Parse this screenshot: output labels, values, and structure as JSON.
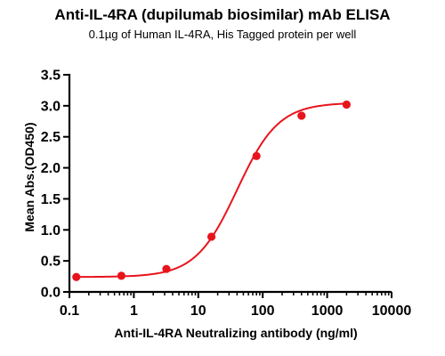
{
  "chart_data": {
    "type": "scatter",
    "title": "Anti-IL-4RA (dupilumab biosimilar) mAb ELISA",
    "subtitle": "0.1µg of Human IL-4RA, His Tagged protein per well",
    "xlabel": "Anti-IL-4RA Neutralizing antibody (ng/ml)",
    "ylabel": "Mean Abs.(OD450)",
    "x_scale": "log",
    "xlim": [
      0.1,
      10000
    ],
    "ylim": [
      0,
      3.5
    ],
    "x_ticks": [
      "0.1",
      "1",
      "10",
      "100",
      "1000",
      "10000"
    ],
    "y_ticks": [
      "0.0",
      "0.5",
      "1.0",
      "1.5",
      "2.0",
      "2.5",
      "3.0",
      "3.5"
    ],
    "grid": false,
    "color": "#e8141c",
    "series": [
      {
        "x": [
          0.128,
          0.64,
          3.2,
          16,
          80,
          400,
          2000
        ],
        "y": [
          0.24,
          0.26,
          0.37,
          0.89,
          2.19,
          2.84,
          3.02
        ],
        "fit": "4PL sigmoid"
      }
    ]
  }
}
